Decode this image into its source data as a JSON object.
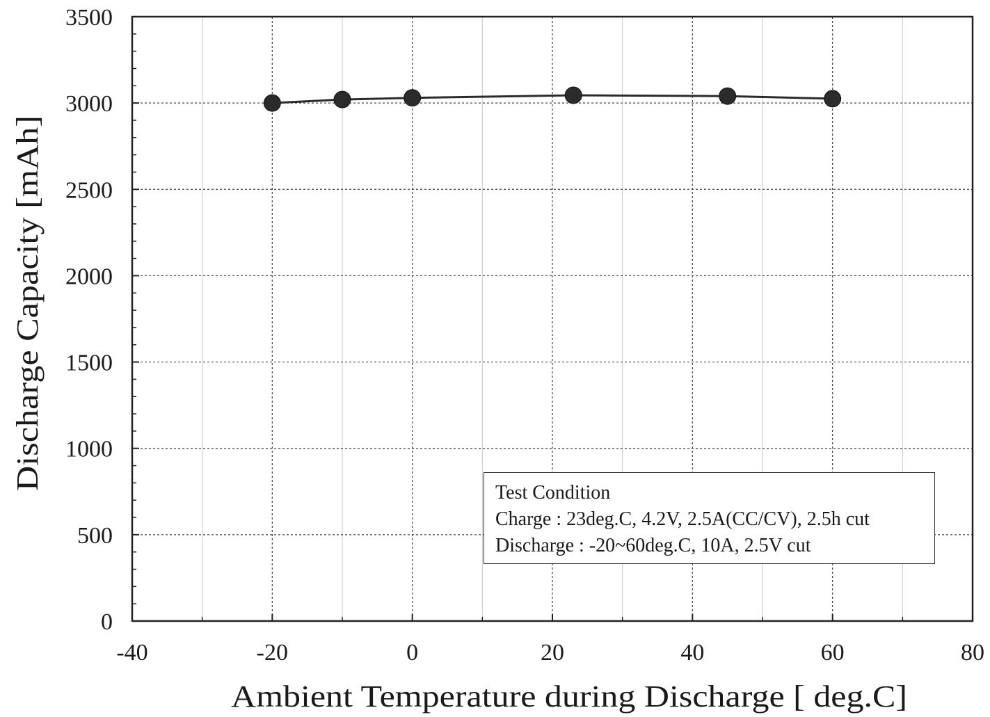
{
  "chart_data": {
    "type": "line",
    "title": "",
    "xlabel": "Ambient Temperature during Discharge [ deg.C]",
    "ylabel": "Discharge Capacity [mAh]",
    "xlim": [
      -40,
      80
    ],
    "ylim": [
      0,
      3500
    ],
    "x_ticks": [
      -40,
      -20,
      0,
      20,
      40,
      60,
      80
    ],
    "x_tick_labels": [
      "-40",
      "-20",
      "0",
      "20",
      "40",
      "60",
      "80"
    ],
    "y_ticks": [
      0,
      500,
      1000,
      1500,
      2000,
      2500,
      3000,
      3500
    ],
    "y_tick_labels": [
      "0",
      "500",
      "1000",
      "1500",
      "2000",
      "2500",
      "3000",
      "3500"
    ],
    "grid": true,
    "series": [
      {
        "x": [
          -20,
          -10,
          0,
          23,
          45,
          60
        ],
        "values": [
          3000,
          3020,
          3030,
          3045,
          3040,
          3025
        ],
        "color": "#2b2b2b",
        "marker": "circle"
      }
    ],
    "annotation": {
      "title": "Test Condition",
      "lines": [
        "Charge : 23deg.C, 4.2V, 2.5A(CC/CV), 2.5h cut",
        "Discharge : -20~60deg.C, 10A, 2.5V cut"
      ]
    }
  }
}
